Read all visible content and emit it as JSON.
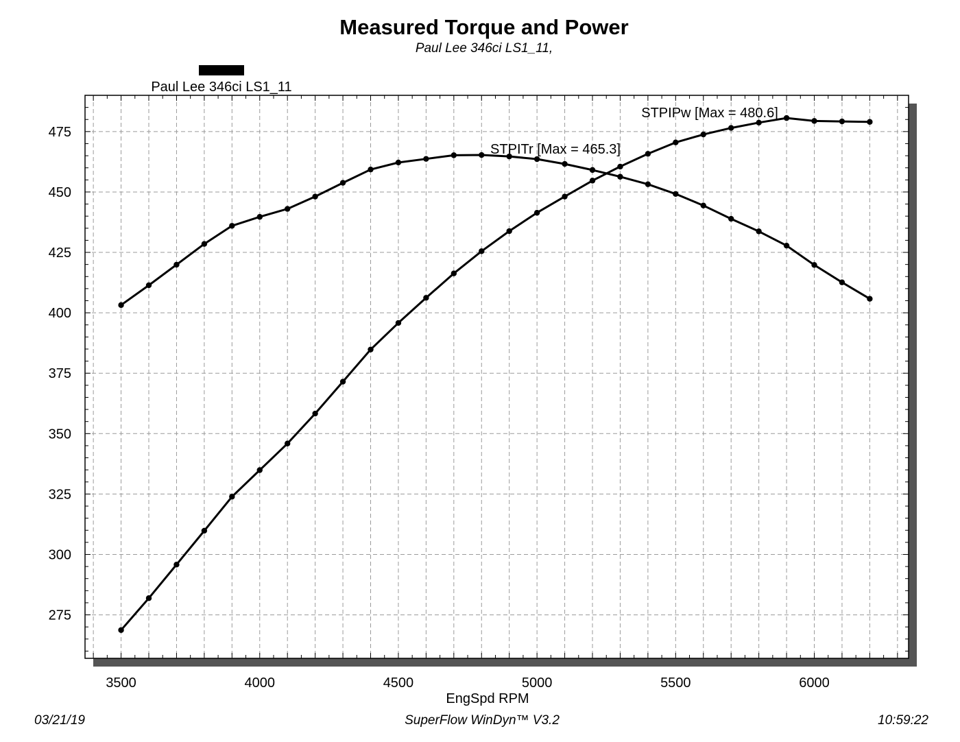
{
  "chart_data": {
    "type": "line",
    "title": "Measured Torque and Power",
    "subtitle": "Paul Lee 346ci LS1_11,",
    "xlabel": "EngSpd RPM",
    "ylabel": "",
    "xlim": [
      3370,
      6340
    ],
    "ylim": [
      257,
      490
    ],
    "x_ticks": [
      3500,
      4000,
      4500,
      5000,
      5500,
      6000
    ],
    "y_ticks": [
      275,
      300,
      325,
      350,
      375,
      400,
      425,
      450,
      475
    ],
    "grid": true,
    "legend": {
      "placement": "top-left",
      "entries": [
        "Paul Lee 346ci LS1_11"
      ]
    },
    "x": [
      3500,
      3600,
      3700,
      3800,
      3900,
      4000,
      4100,
      4200,
      4300,
      4400,
      4500,
      4600,
      4700,
      4800,
      4900,
      5000,
      5100,
      5200,
      5300,
      5400,
      5500,
      5600,
      5700,
      5800,
      5900,
      6000,
      6100,
      6200
    ],
    "series": [
      {
        "name": "STPITr",
        "annotation": "STPITr [Max = 465.3]",
        "values": [
          403.2,
          411.4,
          419.9,
          428.5,
          436.0,
          439.7,
          443.0,
          448.1,
          453.8,
          459.3,
          462.2,
          463.7,
          465.2,
          465.3,
          464.7,
          463.6,
          461.6,
          459.1,
          456.3,
          453.2,
          449.2,
          444.4,
          438.9,
          433.7,
          427.8,
          419.8,
          412.6,
          405.8
        ]
      },
      {
        "name": "STPIPw",
        "annotation": "STPIPw [Max = 480.6]",
        "values": [
          268.7,
          281.9,
          295.8,
          309.8,
          323.9,
          334.9,
          345.9,
          358.3,
          371.5,
          384.8,
          395.8,
          406.2,
          416.3,
          425.5,
          433.8,
          441.4,
          448.1,
          454.7,
          460.5,
          465.8,
          470.5,
          473.8,
          476.5,
          478.7,
          480.6,
          479.4,
          479.2,
          479.0
        ]
      }
    ]
  },
  "footer": {
    "date": "03/21/19",
    "software": "SuperFlow WinDyn™ V3.2",
    "time": "10:59:22"
  }
}
